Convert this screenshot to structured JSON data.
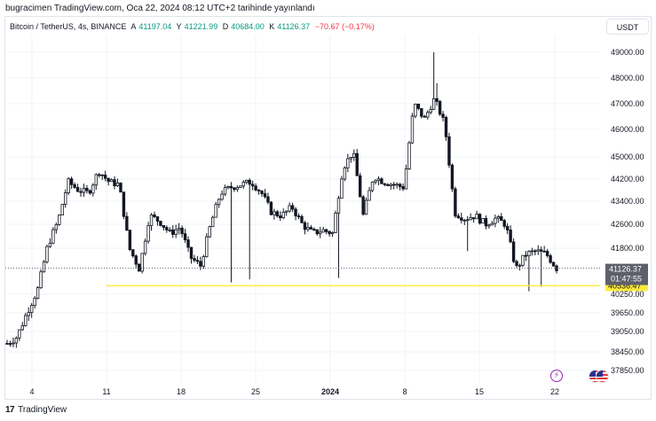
{
  "header": {
    "published_text": "bugracimen TradingView.com, Oca 22, 2024 08:12 UTC+2 tarihinde yayınlandı"
  },
  "legend": {
    "symbol": "Bitcoin / TetherUS, 4s, BINANCE",
    "open_label": "A",
    "open": "41197.04",
    "high_label": "Y",
    "high": "41221.99",
    "low_label": "D",
    "low": "40684.00",
    "close_label": "K",
    "close": "41126.37",
    "change": "−70.67 (−0.17%)"
  },
  "currency_button": "USDT",
  "footer": {
    "brand": "TradingView",
    "logo_mark": "17"
  },
  "events": {
    "bolt_icon": "lightning-icon",
    "flag_icon": "us-flag-icon"
  },
  "colors": {
    "up": "#089981",
    "down": "#f23645",
    "candle": "#131722",
    "hline": "#ffeb3b",
    "price_badge": "#5d606b"
  },
  "chart_data": {
    "type": "candlestick",
    "y_ticks": [
      "49000.00",
      "48000.00",
      "47000.00",
      "46000.00",
      "45000.00",
      "44200.00",
      "43400.00",
      "42600.00",
      "41800.00",
      "40250.00",
      "39650.00",
      "39050.00",
      "38450.00",
      "37850.00"
    ],
    "x_ticks": [
      "4",
      "11",
      "18",
      "25",
      "2024",
      "8",
      "15",
      "22"
    ],
    "ylim": [
      37700,
      49500
    ],
    "price_label": {
      "value": "41126.37",
      "countdown": "01:47:55"
    },
    "horizontal_line": {
      "value": 40536.47,
      "label": "40536.47"
    },
    "approx_close_path": [
      {
        "x": "Dec 31",
        "y": 38700
      },
      {
        "x": "Jan 1",
        "y": 38900
      },
      {
        "x": "Jan 2",
        "y": 39700
      },
      {
        "x": "Jan 3",
        "y": 40400
      },
      {
        "x": "Jan 3.5",
        "y": 41900
      },
      {
        "x": "Jan 4",
        "y": 42700
      },
      {
        "x": "Jan 5",
        "y": 44100
      },
      {
        "x": "Jan 6",
        "y": 43800
      },
      {
        "x": "Jan 7",
        "y": 43700
      },
      {
        "x": "Jan 8",
        "y": 44500
      },
      {
        "x": "Jan 9",
        "y": 44100
      },
      {
        "x": "Jan 10",
        "y": 44000
      },
      {
        "x": "Jan 11",
        "y": 41800
      },
      {
        "x": "Jan 12",
        "y": 41100
      },
      {
        "x": "Jan 13",
        "y": 42900
      },
      {
        "x": "Jan 14",
        "y": 42700
      },
      {
        "x": "Jan 15",
        "y": 42300
      },
      {
        "x": "Jan 16",
        "y": 42500
      },
      {
        "x": "Jan 17",
        "y": 41500
      },
      {
        "x": "Jan 18",
        "y": 41200
      },
      {
        "x": "Jan 19",
        "y": 42600
      },
      {
        "x": "Jan 20",
        "y": 43700
      },
      {
        "x": "Jan 21",
        "y": 43900
      },
      {
        "x": "Jan 22",
        "y": 44000
      },
      {
        "x": "Jan 23",
        "y": 44100
      },
      {
        "x": "Jan 24",
        "y": 43700
      },
      {
        "x": "Jan 25",
        "y": 43000
      },
      {
        "x": "Jan 26",
        "y": 42900
      },
      {
        "x": "Jan 27",
        "y": 43200
      },
      {
        "x": "Jan 28",
        "y": 42600
      },
      {
        "x": "Jan 29",
        "y": 42300
      },
      {
        "x": "Jan 30",
        "y": 42400
      },
      {
        "x": "Dec 31 b",
        "y": 42300
      },
      {
        "x": "Jan 1 b",
        "y": 44600
      },
      {
        "x": "Jan 2 b",
        "y": 45200
      },
      {
        "x": "Jan 3 b",
        "y": 42900
      },
      {
        "x": "Jan 4 b",
        "y": 44300
      },
      {
        "x": "Jan 5 b",
        "y": 44100
      },
      {
        "x": "Jan 6 b",
        "y": 44000
      },
      {
        "x": "Jan 7 b",
        "y": 43900
      },
      {
        "x": "Jan 8 b",
        "y": 47000
      },
      {
        "x": "Jan 9 b",
        "y": 46400
      },
      {
        "x": "Jan 10 b",
        "y": 47200
      },
      {
        "x": "Jan 11 b",
        "y": 46200
      },
      {
        "x": "Jan 12 b",
        "y": 43000
      },
      {
        "x": "Jan 13 b",
        "y": 42800
      },
      {
        "x": "Jan 14 b",
        "y": 42900
      },
      {
        "x": "Jan 15 b",
        "y": 42600
      },
      {
        "x": "Jan 16 b",
        "y": 42800
      },
      {
        "x": "Jan 17 b",
        "y": 42600
      },
      {
        "x": "Jan 18 b",
        "y": 41100
      },
      {
        "x": "Jan 19 b",
        "y": 41600
      },
      {
        "x": "Jan 20 b",
        "y": 41700
      },
      {
        "x": "Jan 21 b",
        "y": 41600
      },
      {
        "x": "Jan 22 b",
        "y": 41126
      }
    ]
  }
}
